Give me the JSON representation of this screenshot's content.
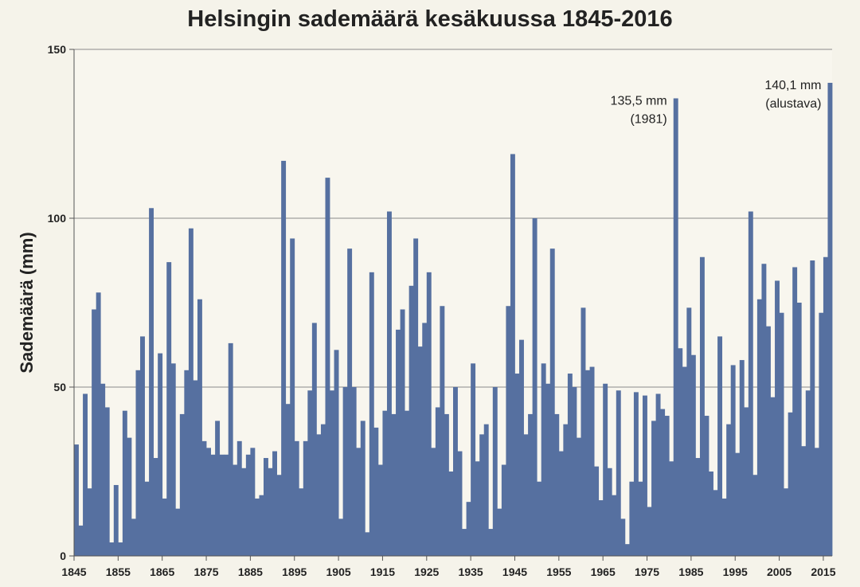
{
  "chart_data": {
    "type": "bar",
    "title": "Helsingin sademäärä kesäkuussa 1845-2016",
    "ylabel": "Sademäärä (mm)",
    "xlabel": "",
    "ylim": [
      0,
      150
    ],
    "yticks": [
      0,
      50,
      100,
      150
    ],
    "xticks": [
      1845,
      1855,
      1865,
      1875,
      1885,
      1895,
      1905,
      1915,
      1925,
      1935,
      1945,
      1955,
      1965,
      1975,
      1985,
      1995,
      2005,
      2015
    ],
    "grid": true,
    "bar_color": "#5670a0",
    "annotations": [
      {
        "year": 1981,
        "lines": [
          "135,5 mm",
          "(1981)"
        ]
      },
      {
        "year": 2016,
        "lines": [
          "140,1 mm",
          "(alustava)"
        ]
      }
    ],
    "categories": [
      1845,
      1846,
      1847,
      1848,
      1849,
      1850,
      1851,
      1852,
      1853,
      1854,
      1855,
      1856,
      1857,
      1858,
      1859,
      1860,
      1861,
      1862,
      1863,
      1864,
      1865,
      1866,
      1867,
      1868,
      1869,
      1870,
      1871,
      1872,
      1873,
      1874,
      1875,
      1876,
      1877,
      1878,
      1879,
      1880,
      1881,
      1882,
      1883,
      1884,
      1885,
      1886,
      1887,
      1888,
      1889,
      1890,
      1891,
      1892,
      1893,
      1894,
      1895,
      1896,
      1897,
      1898,
      1899,
      1900,
      1901,
      1902,
      1903,
      1904,
      1905,
      1906,
      1907,
      1908,
      1909,
      1910,
      1911,
      1912,
      1913,
      1914,
      1915,
      1916,
      1917,
      1918,
      1919,
      1920,
      1921,
      1922,
      1923,
      1924,
      1925,
      1926,
      1927,
      1928,
      1929,
      1930,
      1931,
      1932,
      1933,
      1934,
      1935,
      1936,
      1937,
      1938,
      1939,
      1940,
      1941,
      1942,
      1943,
      1944,
      1945,
      1946,
      1947,
      1948,
      1949,
      1950,
      1951,
      1952,
      1953,
      1954,
      1955,
      1956,
      1957,
      1958,
      1959,
      1960,
      1961,
      1962,
      1963,
      1964,
      1965,
      1966,
      1967,
      1968,
      1969,
      1970,
      1971,
      1972,
      1973,
      1974,
      1975,
      1976,
      1977,
      1978,
      1979,
      1980,
      1981,
      1982,
      1983,
      1984,
      1985,
      1986,
      1987,
      1988,
      1989,
      1990,
      1991,
      1992,
      1993,
      1994,
      1995,
      1996,
      1997,
      1998,
      1999,
      2000,
      2001,
      2002,
      2003,
      2004,
      2005,
      2006,
      2007,
      2008,
      2009,
      2010,
      2011,
      2012,
      2013,
      2014,
      2015,
      2016
    ],
    "values": [
      33,
      9,
      48,
      20,
      73,
      78,
      51,
      44,
      4,
      21,
      4,
      43,
      35,
      11,
      55,
      65,
      22,
      103,
      29,
      60,
      17,
      87,
      57,
      14,
      42,
      55,
      97,
      52,
      76,
      34,
      32,
      30,
      40,
      30,
      30,
      63,
      27,
      34,
      26,
      30,
      32,
      17,
      18,
      29,
      26,
      31,
      24,
      117,
      45,
      94,
      34,
      20,
      34,
      49,
      69,
      36,
      39,
      112,
      49,
      61,
      11,
      50,
      91,
      50,
      32,
      40,
      7,
      84,
      38,
      27,
      43,
      102,
      42,
      67,
      73,
      43,
      80,
      94,
      62,
      69,
      84,
      32,
      44,
      74,
      42,
      25,
      50,
      31,
      8,
      16,
      57,
      28,
      36,
      39,
      8,
      50,
      14,
      27,
      74,
      119,
      54,
      64,
      36,
      42,
      100,
      22,
      57,
      51,
      91,
      42,
      31,
      39,
      54,
      50,
      35,
      73.5,
      55,
      56,
      26.5,
      16.5,
      51,
      26,
      18,
      49,
      11,
      3.5,
      22,
      48.5,
      22,
      47.5,
      14.5,
      40,
      48,
      43.5,
      41.5,
      28,
      135.5,
      61.5,
      56,
      73.5,
      59.5,
      29,
      88.5,
      41.5,
      25,
      19.5,
      65,
      17,
      39,
      56.5,
      30.5,
      58,
      44,
      102,
      24,
      76,
      86.5,
      68,
      47,
      81.5,
      72,
      20,
      42.5,
      85.5,
      75,
      32.5,
      49,
      87.5,
      32,
      72,
      88.5,
      140.1
    ]
  }
}
